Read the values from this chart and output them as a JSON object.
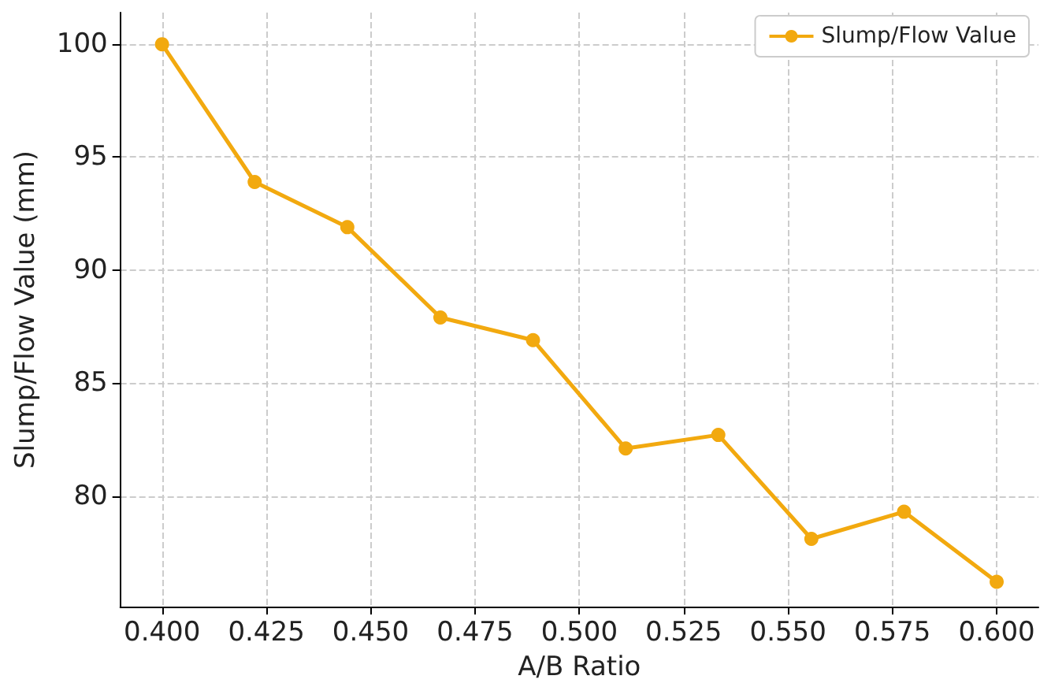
{
  "chart_data": {
    "type": "line",
    "xlabel": "A/B Ratio",
    "ylabel": "Slump/Flow Value (mm)",
    "x": [
      0.4,
      0.4222,
      0.4444,
      0.4667,
      0.4889,
      0.5111,
      0.5333,
      0.5556,
      0.5778,
      0.6
    ],
    "series": [
      {
        "name": "Slump/Flow Value",
        "color": "#f2a90f",
        "values": [
          100,
          93.9,
          91.9,
          87.9,
          86.9,
          82.1,
          82.7,
          78.1,
          79.3,
          76.2
        ]
      }
    ],
    "xlim": [
      0.39,
      0.61
    ],
    "xticks": [
      {
        "value": 0.4,
        "label": "0.400"
      },
      {
        "value": 0.425,
        "label": "0.425"
      },
      {
        "value": 0.45,
        "label": "0.450"
      },
      {
        "value": 0.475,
        "label": "0.475"
      },
      {
        "value": 0.5,
        "label": "0.500"
      },
      {
        "value": 0.525,
        "label": "0.525"
      },
      {
        "value": 0.55,
        "label": "0.550"
      },
      {
        "value": 0.575,
        "label": "0.575"
      },
      {
        "value": 0.6,
        "label": "0.600"
      }
    ],
    "ylim": [
      75.1,
      101.4
    ],
    "yticks": [
      80,
      85,
      90,
      95,
      100
    ],
    "grid": true,
    "legend": "top right",
    "marker": "circle",
    "line_style": "solid"
  }
}
